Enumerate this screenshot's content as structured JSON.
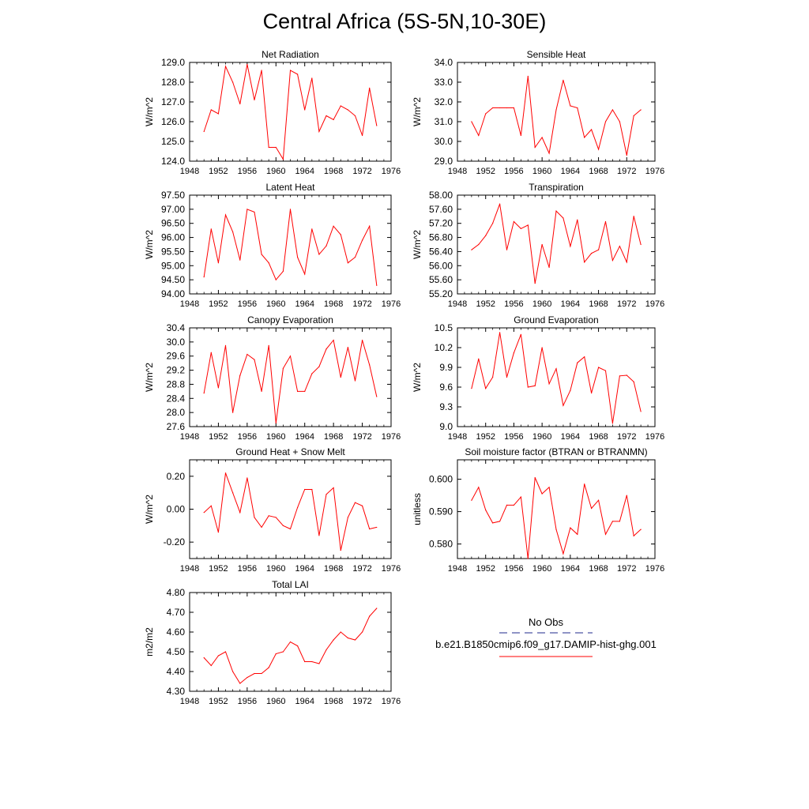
{
  "title": "Central Africa (5S-5N,10-30E)",
  "legend": {
    "obs_label": "No Obs",
    "model_label": "b.e21.B1850cmip6.f09_g17.DAMIP-hist-ghg.001",
    "obs_color": "#1f2a8c",
    "model_color": "#ff0000"
  },
  "chart_data": [
    {
      "type": "line",
      "title": "Net Radiation",
      "ylabel": "W/m^2",
      "xlim": [
        1948,
        1976
      ],
      "x_ticks": [
        "1948",
        "1952",
        "1956",
        "1960",
        "1964",
        "1968",
        "1972",
        "1976"
      ],
      "ylim": [
        124.0,
        129.0
      ],
      "y_ticks": [
        "124.0",
        "125.0",
        "126.0",
        "127.0",
        "128.0",
        "129.0"
      ],
      "x": [
        1950,
        1951,
        1952,
        1953,
        1954,
        1955,
        1956,
        1957,
        1958,
        1959,
        1960,
        1961,
        1962,
        1963,
        1964,
        1965,
        1966,
        1967,
        1968,
        1969,
        1970,
        1971,
        1972,
        1973,
        1974
      ],
      "series": [
        {
          "values": [
            125.5,
            126.6,
            126.4,
            128.8,
            128.0,
            126.9,
            128.9,
            127.1,
            128.6,
            124.7,
            124.7,
            124.1,
            128.6,
            128.4,
            126.6,
            128.2,
            125.5,
            126.3,
            126.1,
            126.8,
            126.6,
            126.3,
            125.3,
            127.7,
            125.8
          ]
        }
      ]
    },
    {
      "type": "line",
      "title": "Sensible Heat",
      "ylabel": "W/m^2",
      "xlim": [
        1948,
        1976
      ],
      "x_ticks": [
        "1948",
        "1952",
        "1956",
        "1960",
        "1964",
        "1968",
        "1972",
        "1976"
      ],
      "ylim": [
        29.0,
        34.0
      ],
      "y_ticks": [
        "29.0",
        "30.0",
        "31.0",
        "32.0",
        "33.0",
        "34.0"
      ],
      "x": [
        1950,
        1951,
        1952,
        1953,
        1954,
        1955,
        1956,
        1957,
        1958,
        1959,
        1960,
        1961,
        1962,
        1963,
        1964,
        1965,
        1966,
        1967,
        1968,
        1969,
        1970,
        1971,
        1972,
        1973,
        1974
      ],
      "series": [
        {
          "values": [
            31.0,
            30.3,
            31.4,
            31.7,
            31.7,
            31.7,
            31.7,
            30.3,
            33.3,
            29.7,
            30.2,
            29.4,
            31.6,
            33.1,
            31.8,
            31.7,
            30.2,
            30.6,
            29.6,
            31.0,
            31.6,
            31.0,
            29.3,
            31.3,
            31.6
          ]
        }
      ]
    },
    {
      "type": "line",
      "title": "Latent Heat",
      "ylabel": "W/m^2",
      "xlim": [
        1948,
        1976
      ],
      "x_ticks": [
        "1948",
        "1952",
        "1956",
        "1960",
        "1964",
        "1968",
        "1972",
        "1976"
      ],
      "ylim": [
        94.0,
        97.5
      ],
      "y_ticks": [
        "94.00",
        "94.50",
        "95.00",
        "95.50",
        "96.00",
        "96.50",
        "97.00",
        "97.50"
      ],
      "x": [
        1950,
        1951,
        1952,
        1953,
        1954,
        1955,
        1956,
        1957,
        1958,
        1959,
        1960,
        1961,
        1962,
        1963,
        1964,
        1965,
        1966,
        1967,
        1968,
        1969,
        1970,
        1971,
        1972,
        1973,
        1974
      ],
      "series": [
        {
          "values": [
            94.6,
            96.3,
            95.1,
            96.8,
            96.2,
            95.2,
            97.0,
            96.9,
            95.4,
            95.1,
            94.5,
            94.8,
            97.0,
            95.3,
            94.7,
            96.3,
            95.4,
            95.7,
            96.4,
            96.1,
            95.1,
            95.3,
            95.9,
            96.4,
            94.3
          ]
        }
      ]
    },
    {
      "type": "line",
      "title": "Transpiration",
      "ylabel": "W/m^2",
      "xlim": [
        1948,
        1976
      ],
      "x_ticks": [
        "1948",
        "1952",
        "1956",
        "1960",
        "1964",
        "1968",
        "1972",
        "1976"
      ],
      "ylim": [
        55.2,
        58.0
      ],
      "y_ticks": [
        "55.20",
        "55.60",
        "56.00",
        "56.40",
        "56.80",
        "57.20",
        "57.60",
        "58.00"
      ],
      "x": [
        1950,
        1951,
        1952,
        1953,
        1954,
        1955,
        1956,
        1957,
        1958,
        1959,
        1960,
        1961,
        1962,
        1963,
        1964,
        1965,
        1966,
        1967,
        1968,
        1969,
        1970,
        1971,
        1972,
        1973,
        1974
      ],
      "series": [
        {
          "values": [
            56.45,
            56.6,
            56.85,
            57.2,
            57.75,
            56.45,
            57.25,
            57.05,
            57.15,
            55.5,
            56.6,
            55.95,
            57.55,
            57.35,
            56.55,
            57.3,
            56.1,
            56.35,
            56.45,
            57.25,
            56.15,
            56.55,
            56.1,
            57.4,
            56.6
          ]
        }
      ]
    },
    {
      "type": "line",
      "title": "Canopy Evaporation",
      "ylabel": "W/m^2",
      "xlim": [
        1948,
        1976
      ],
      "x_ticks": [
        "1948",
        "1952",
        "1956",
        "1960",
        "1964",
        "1968",
        "1972",
        "1976"
      ],
      "ylim": [
        27.6,
        30.4
      ],
      "y_ticks": [
        "27.6",
        "28.0",
        "28.4",
        "28.8",
        "29.2",
        "29.6",
        "30.0",
        "30.4"
      ],
      "x": [
        1950,
        1951,
        1952,
        1953,
        1954,
        1955,
        1956,
        1957,
        1958,
        1959,
        1960,
        1961,
        1962,
        1963,
        1964,
        1965,
        1966,
        1967,
        1968,
        1969,
        1970,
        1971,
        1972,
        1973,
        1974
      ],
      "series": [
        {
          "values": [
            28.55,
            29.7,
            28.7,
            29.9,
            28.0,
            29.05,
            29.65,
            29.5,
            28.6,
            29.9,
            27.7,
            29.25,
            29.6,
            28.6,
            28.6,
            29.1,
            29.3,
            29.8,
            30.05,
            29.0,
            29.85,
            28.9,
            30.05,
            29.35,
            28.45
          ]
        }
      ]
    },
    {
      "type": "line",
      "title": "Ground Evaporation",
      "ylabel": "W/m^2",
      "xlim": [
        1948,
        1976
      ],
      "x_ticks": [
        "1948",
        "1952",
        "1956",
        "1960",
        "1964",
        "1968",
        "1972",
        "1976"
      ],
      "ylim": [
        9.0,
        10.5
      ],
      "y_ticks": [
        "9.0",
        "9.3",
        "9.6",
        "9.9",
        "10.2",
        "10.5"
      ],
      "x": [
        1950,
        1951,
        1952,
        1953,
        1954,
        1955,
        1956,
        1957,
        1958,
        1959,
        1960,
        1961,
        1962,
        1963,
        1964,
        1965,
        1966,
        1967,
        1968,
        1969,
        1970,
        1971,
        1972,
        1973,
        1974
      ],
      "series": [
        {
          "values": [
            9.58,
            10.03,
            9.58,
            9.75,
            10.43,
            9.75,
            10.12,
            10.4,
            9.6,
            9.62,
            10.2,
            9.65,
            9.88,
            9.32,
            9.55,
            9.97,
            10.06,
            9.51,
            9.9,
            9.85,
            9.05,
            9.77,
            9.78,
            9.68,
            9.23
          ]
        }
      ]
    },
    {
      "type": "line",
      "title": "Ground Heat + Snow Melt",
      "ylabel": "W/m^2",
      "xlim": [
        1948,
        1976
      ],
      "x_ticks": [
        "1948",
        "1952",
        "1956",
        "1960",
        "1964",
        "1968",
        "1972",
        "1976"
      ],
      "ylim": [
        -0.3,
        0.3
      ],
      "y_ticks": [
        "-0.20",
        "0.00",
        "0.20"
      ],
      "y_tick_values": [
        -0.2,
        0.0,
        0.2
      ],
      "x": [
        1950,
        1951,
        1952,
        1953,
        1954,
        1955,
        1956,
        1957,
        1958,
        1959,
        1960,
        1961,
        1962,
        1963,
        1964,
        1965,
        1966,
        1967,
        1968,
        1969,
        1970,
        1971,
        1972,
        1973,
        1974
      ],
      "series": [
        {
          "values": [
            -0.02,
            0.02,
            -0.14,
            0.22,
            0.1,
            -0.02,
            0.19,
            -0.05,
            -0.11,
            -0.04,
            -0.05,
            -0.1,
            -0.12,
            0.01,
            0.12,
            0.12,
            -0.16,
            0.09,
            0.13,
            -0.25,
            -0.05,
            0.04,
            0.02,
            -0.12,
            -0.11
          ]
        }
      ]
    },
    {
      "type": "line",
      "title": "Soil moisture factor (BTRAN or BTRANMN)",
      "ylabel": "unitless",
      "xlim": [
        1948,
        1976
      ],
      "x_ticks": [
        "1948",
        "1952",
        "1956",
        "1960",
        "1964",
        "1968",
        "1972",
        "1976"
      ],
      "ylim": [
        0.5755,
        0.606
      ],
      "y_ticks": [
        "0.580",
        "0.590",
        "0.600"
      ],
      "y_tick_values": [
        0.58,
        0.59,
        0.6
      ],
      "x": [
        1950,
        1951,
        1952,
        1953,
        1954,
        1955,
        1956,
        1957,
        1958,
        1959,
        1960,
        1961,
        1962,
        1963,
        1964,
        1965,
        1966,
        1967,
        1968,
        1969,
        1970,
        1971,
        1972,
        1973,
        1974
      ],
      "series": [
        {
          "values": [
            0.5935,
            0.5975,
            0.5905,
            0.5865,
            0.587,
            0.592,
            0.592,
            0.5945,
            0.5755,
            0.6005,
            0.5955,
            0.5975,
            0.5845,
            0.577,
            0.585,
            0.583,
            0.5985,
            0.591,
            0.5935,
            0.583,
            0.587,
            0.587,
            0.595,
            0.5825,
            0.5845
          ]
        }
      ]
    },
    {
      "type": "line",
      "title": "Total LAI",
      "ylabel": "m2/m2",
      "xlim": [
        1948,
        1976
      ],
      "x_ticks": [
        "1948",
        "1952",
        "1956",
        "1960",
        "1964",
        "1968",
        "1972",
        "1976"
      ],
      "ylim": [
        4.3,
        4.8
      ],
      "y_ticks": [
        "4.30",
        "4.40",
        "4.50",
        "4.60",
        "4.70",
        "4.80"
      ],
      "x": [
        1950,
        1951,
        1952,
        1953,
        1954,
        1955,
        1956,
        1957,
        1958,
        1959,
        1960,
        1961,
        1962,
        1963,
        1964,
        1965,
        1966,
        1967,
        1968,
        1969,
        1970,
        1971,
        1972,
        1973,
        1974
      ],
      "series": [
        {
          "values": [
            4.47,
            4.43,
            4.48,
            4.5,
            4.4,
            4.34,
            4.37,
            4.39,
            4.39,
            4.42,
            4.49,
            4.5,
            4.55,
            4.53,
            4.45,
            4.45,
            4.44,
            4.51,
            4.56,
            4.6,
            4.57,
            4.56,
            4.6,
            4.68,
            4.72
          ]
        }
      ]
    }
  ]
}
